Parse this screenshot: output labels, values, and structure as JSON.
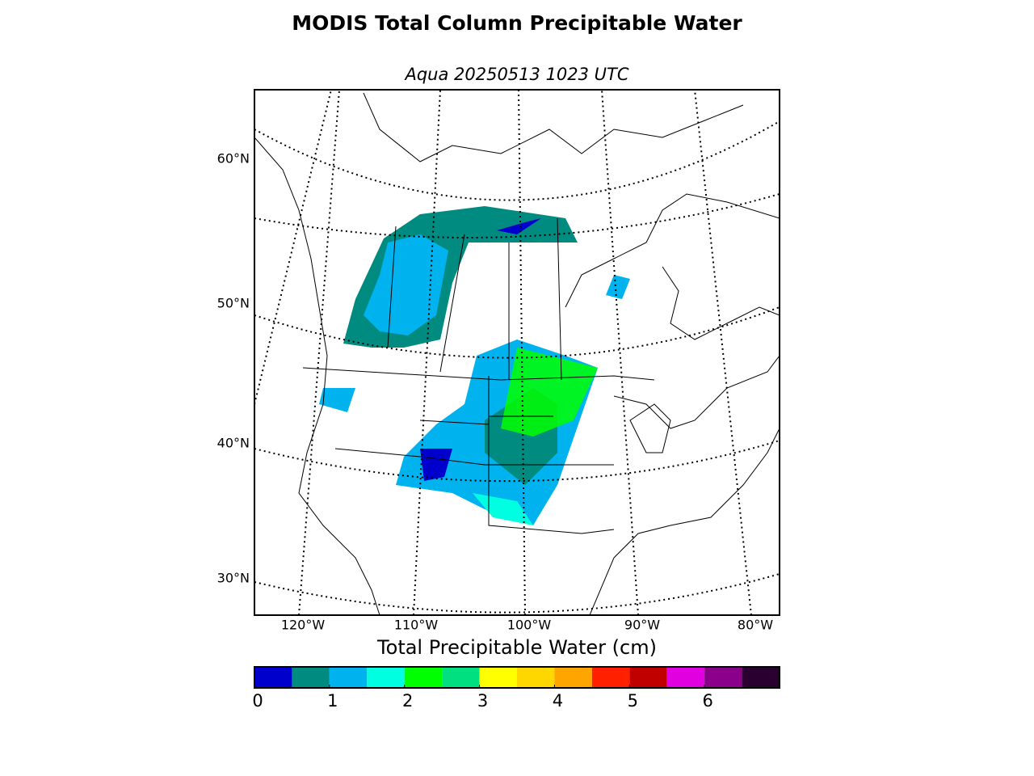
{
  "title": "MODIS Total Column Precipitable Water",
  "subtitle": "Aqua 20250513 1023 UTC",
  "map": {
    "lat_labels": [
      {
        "value": 60,
        "label": "60°N"
      },
      {
        "value": 50,
        "label": "50°N"
      },
      {
        "value": 40,
        "label": "40°N"
      },
      {
        "value": 30,
        "label": "30°N"
      }
    ],
    "lon_labels": [
      {
        "value": -120,
        "label": "120°W"
      },
      {
        "value": -110,
        "label": "110°W"
      },
      {
        "value": -100,
        "label": "100°W"
      },
      {
        "value": -90,
        "label": "90°W"
      },
      {
        "value": -80,
        "label": "80°W"
      }
    ]
  },
  "colorbar": {
    "label": "Total Precipitable Water (cm)",
    "lim": [
      0,
      7
    ],
    "ticks": [
      0,
      1,
      2,
      3,
      4,
      5,
      6
    ],
    "colors": [
      "#0000cd",
      "#008b80",
      "#00b2ee",
      "#00ffe0",
      "#00ff00",
      "#00e080",
      "#ffff00",
      "#ffd700",
      "#ffa500",
      "#ff2000",
      "#c00000",
      "#e000e0",
      "#8b008b",
      "#2a0030"
    ]
  }
}
